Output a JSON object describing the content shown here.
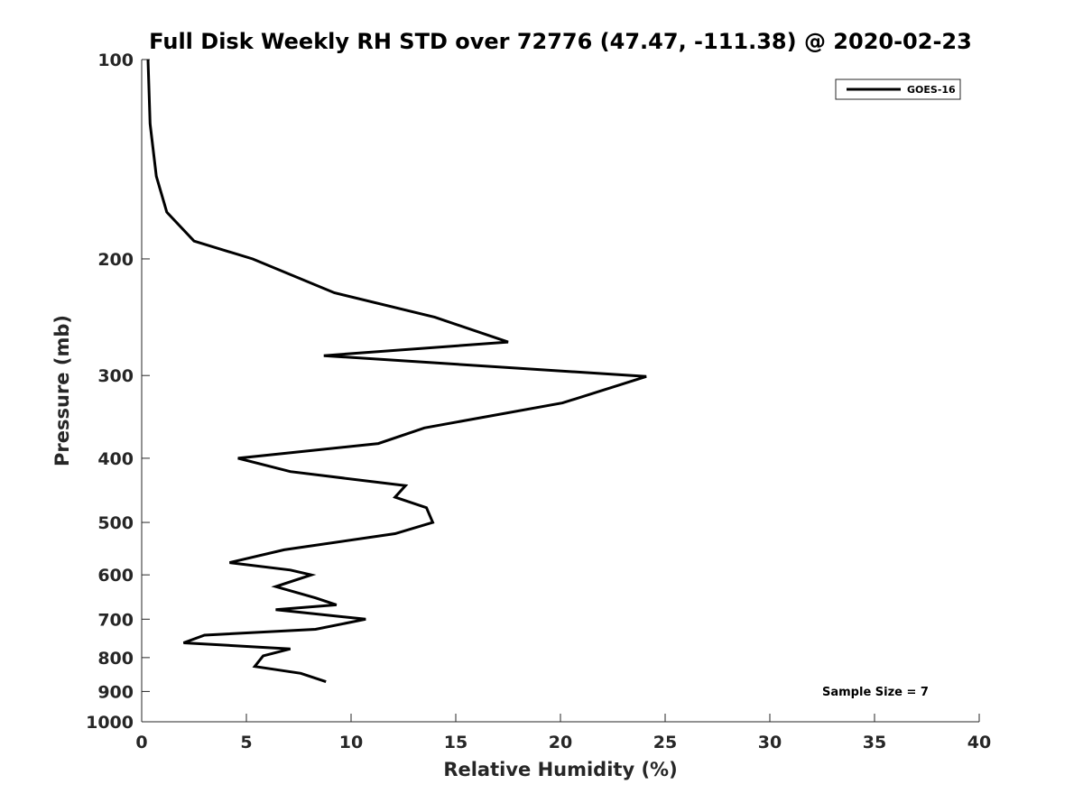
{
  "chart_data": {
    "type": "line",
    "title": "Full Disk Weekly RH STD over 72776 (47.47, -111.38) @ 2020-02-23",
    "xlabel": "Relative Humidity (%)",
    "ylabel": "Pressure (mb)",
    "xlim": [
      0,
      40
    ],
    "ylim": [
      100,
      1000
    ],
    "y_scale": "log",
    "y_reversed": true,
    "x_ticks": [
      0,
      5,
      10,
      15,
      20,
      25,
      30,
      35,
      40
    ],
    "y_ticks": [
      100,
      200,
      300,
      400,
      500,
      600,
      700,
      800,
      900,
      1000
    ],
    "grid": false,
    "legend_position": "top-right",
    "series": [
      {
        "name": "GOES-16",
        "color": "#000000",
        "points": [
          [
            0.3,
            100
          ],
          [
            0.4,
            125
          ],
          [
            0.7,
            150
          ],
          [
            1.2,
            170
          ],
          [
            2.5,
            188
          ],
          [
            5.3,
            200
          ],
          [
            9.2,
            225
          ],
          [
            14.0,
            245
          ],
          [
            17.5,
            267
          ],
          [
            8.7,
            280
          ],
          [
            24.1,
            301
          ],
          [
            20.1,
            330
          ],
          [
            13.5,
            360
          ],
          [
            11.3,
            380
          ],
          [
            4.6,
            400
          ],
          [
            7.1,
            419
          ],
          [
            12.6,
            440
          ],
          [
            12.1,
            458
          ],
          [
            13.6,
            475
          ],
          [
            13.9,
            500
          ],
          [
            12.1,
            520
          ],
          [
            6.8,
            550
          ],
          [
            4.2,
            575
          ],
          [
            7.1,
            590
          ],
          [
            8.1,
            600
          ],
          [
            6.4,
            625
          ],
          [
            8.3,
            650
          ],
          [
            9.3,
            666
          ],
          [
            6.4,
            677
          ],
          [
            10.7,
            700
          ],
          [
            8.3,
            725
          ],
          [
            3.0,
            740
          ],
          [
            2.0,
            760
          ],
          [
            7.1,
            776
          ],
          [
            5.8,
            795
          ],
          [
            5.6,
            810
          ],
          [
            5.4,
            825
          ],
          [
            7.6,
            845
          ],
          [
            8.8,
            870
          ]
        ]
      }
    ],
    "annotations": [
      {
        "text": "Sample Size = 7",
        "position": "bottom-right"
      }
    ]
  }
}
